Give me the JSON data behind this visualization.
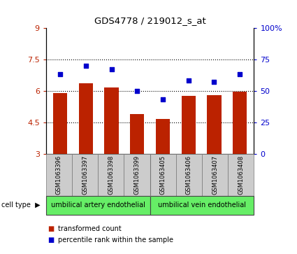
{
  "title": "GDS4778 / 219012_s_at",
  "samples": [
    "GSM1063396",
    "GSM1063397",
    "GSM1063398",
    "GSM1063399",
    "GSM1063405",
    "GSM1063406",
    "GSM1063407",
    "GSM1063408"
  ],
  "bar_values": [
    5.9,
    6.35,
    6.15,
    4.9,
    4.65,
    5.75,
    5.8,
    5.95
  ],
  "dot_values": [
    63,
    70,
    67,
    50,
    43,
    58,
    57,
    63
  ],
  "bar_color": "#bb2200",
  "dot_color": "#0000cc",
  "ylim_left": [
    3,
    9
  ],
  "ylim_right": [
    0,
    100
  ],
  "yticks_left": [
    3,
    4.5,
    6,
    7.5,
    9
  ],
  "yticks_right": [
    0,
    25,
    50,
    75,
    100
  ],
  "ytick_labels_left": [
    "3",
    "4.5",
    "6",
    "7.5",
    "9"
  ],
  "ytick_labels_right": [
    "0",
    "25",
    "50",
    "75",
    "100%"
  ],
  "hlines": [
    4.5,
    6.0,
    7.5
  ],
  "group1_label": "umbilical artery endothelial",
  "group2_label": "umbilical vein endothelial",
  "cell_type_label": "cell type",
  "legend_bar_label": "transformed count",
  "legend_dot_label": "percentile rank within the sample",
  "plot_bg": "#ffffff",
  "group_color": "#66ee66",
  "sample_box_color": "#cccccc",
  "figsize": [
    4.25,
    3.63
  ],
  "dpi": 100
}
